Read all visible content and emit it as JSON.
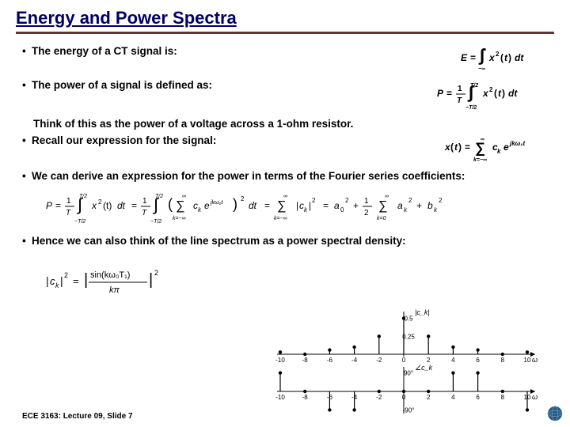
{
  "title": "Energy and Power Spectra",
  "bullets": {
    "b1": "The energy of a CT signal is:",
    "b2": "The power of a signal is defined as:",
    "b2_sub": "Think of this as the power of a voltage across a 1-ohm resistor.",
    "b3": "Recall our expression for the signal:",
    "b4": "We can derive an expression for the power in terms of the Fourier series coefficients:",
    "b5": "Hence we can also think of the line spectrum as a power spectral density:"
  },
  "equations": {
    "energy": "E = \\int_{-\\infty}^{\\infty} x^2(t)\\,dt",
    "power": "P = \\frac{1}{T}\\int_{-T/2}^{T/2} x^2(t)\\,dt",
    "signal": "x(t) = \\sum_{k=-\\infty}^{\\infty} c_k e^{jk\\omega_0 t}",
    "parseval": "P = \\frac{1}{T}\\int_{-T/2}^{T/2} x^2(t)\\,dt = \\frac{1}{T}\\int_{-T/2}^{T/2}\\Big(\\sum_{k=-\\infty}^{\\infty} c_k e^{jk\\omega_0 t}\\Big)^2 dt = \\sum_{k=-\\infty}^{\\infty}|c_k|^2 = a_0^2 + \\tfrac{1}{2}\\sum_{k=0}^{\\infty}(a_k^2 + b_k^2)",
    "ck": "|c_k|^2 = \\left|\\dfrac{\\sin(k\\omega_0 T_1)}{k\\pi}\\right|^2"
  },
  "plot": {
    "type": "stem",
    "xlabel": "ω",
    "mag_label": "|c_k|",
    "phase_label": "∠c_k",
    "xticks": [
      -10,
      -8,
      -6,
      -4,
      -2,
      0,
      2,
      4,
      6,
      8,
      10
    ],
    "mag_values": [
      0.03,
      0.0,
      0.06,
      0.1,
      0.25,
      0.5,
      0.25,
      0.1,
      0.06,
      0.0,
      0.03
    ],
    "mag_yticks": [
      0.25,
      0.5
    ],
    "phase_values": [
      90,
      0,
      -90,
      -90,
      0,
      0,
      0,
      90,
      90,
      0,
      -90
    ],
    "phase_yticks": [
      90,
      -90
    ],
    "phase_ytick_labels": [
      "90°",
      "-90°"
    ],
    "colors": {
      "axis": "#000000",
      "stem": "#000000",
      "bg": "#ffffff"
    },
    "mag_ylim": [
      0,
      0.55
    ],
    "phase_ylim": [
      -100,
      100
    ]
  },
  "footer": "ECE 3163: Lecture 09, Slide 7"
}
